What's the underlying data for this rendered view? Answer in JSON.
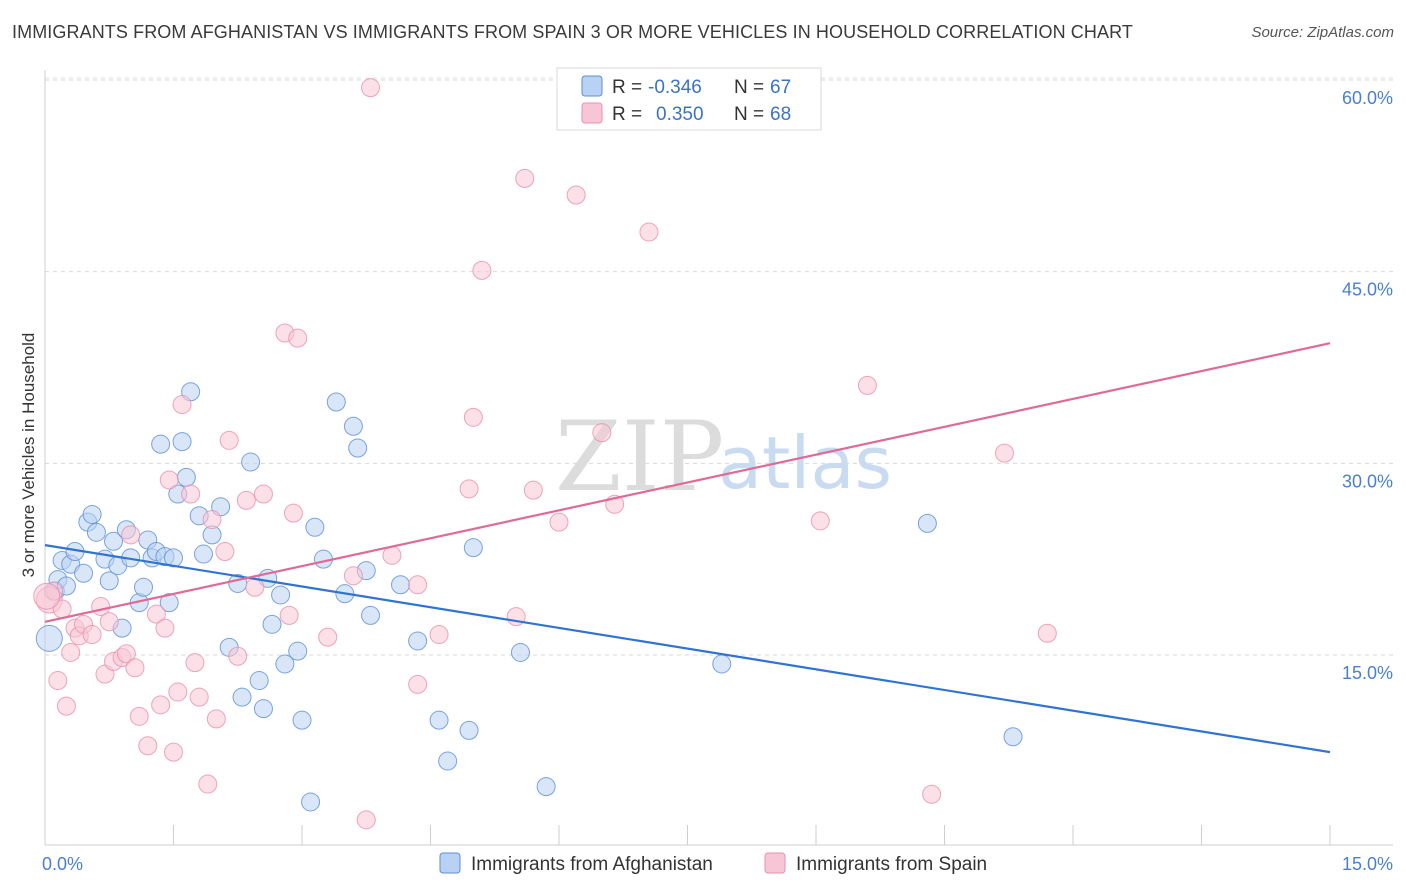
{
  "title": "IMMIGRANTS FROM AFGHANISTAN VS IMMIGRANTS FROM SPAIN 3 OR MORE VEHICLES IN HOUSEHOLD CORRELATION CHART",
  "source": "Source: ZipAtlas.com",
  "watermark": {
    "zip": "ZIP",
    "atlas": "atlas"
  },
  "colors": {
    "blue": "#5b8fd6",
    "blue_fill": "#b9d1f2",
    "blue_line": "#2f74d0",
    "pink": "#e98fae",
    "pink_fill": "#f7c6d6",
    "pink_line": "#e06a95"
  },
  "legend": {
    "rows": [
      {
        "r_label": "R = ",
        "r_value": "-0.346",
        "n_label": "N = ",
        "n_value": "67"
      },
      {
        "r_label": "R = ",
        "r_value": "0.350",
        "n_label": "N = ",
        "n_value": "68"
      }
    ]
  },
  "bottom_legend": [
    "Immigrants from Afghanistan",
    "Immigrants from Spain"
  ],
  "chart_data": {
    "type": "scatter",
    "title": "IMMIGRANTS FROM AFGHANISTAN VS IMMIGRANTS FROM SPAIN 3 OR MORE VEHICLES IN HOUSEHOLD CORRELATION CHART",
    "xlabel": "",
    "ylabel": "3 or more Vehicles in Household",
    "xlim": [
      0,
      15
    ],
    "ylim": [
      0,
      61
    ],
    "x_tick_labels": [
      "0.0%",
      "15.0%"
    ],
    "y_ticks": [
      15,
      30,
      45,
      60
    ],
    "y_tick_labels": [
      "15.0%",
      "30.0%",
      "45.0%",
      "60.0%"
    ],
    "grid": true,
    "series": [
      {
        "name": "Immigrants from Afghanistan",
        "color": "#5b8fd6",
        "trend": {
          "x": [
            0,
            15
          ],
          "y": [
            23.6,
            7.4
          ]
        },
        "points": [
          [
            0.05,
            16.3
          ],
          [
            0.12,
            20.0
          ],
          [
            0.15,
            20.9
          ],
          [
            0.2,
            22.4
          ],
          [
            0.25,
            20.4
          ],
          [
            0.3,
            22.1
          ],
          [
            0.35,
            23.1
          ],
          [
            0.45,
            21.4
          ],
          [
            0.5,
            25.4
          ],
          [
            0.55,
            26.0
          ],
          [
            0.6,
            24.6
          ],
          [
            0.7,
            22.5
          ],
          [
            0.75,
            20.8
          ],
          [
            0.8,
            23.9
          ],
          [
            0.85,
            22.0
          ],
          [
            0.9,
            17.1
          ],
          [
            0.95,
            24.8
          ],
          [
            1.0,
            22.6
          ],
          [
            1.1,
            19.1
          ],
          [
            1.15,
            20.3
          ],
          [
            1.2,
            24.0
          ],
          [
            1.25,
            22.6
          ],
          [
            1.3,
            23.1
          ],
          [
            1.35,
            31.5
          ],
          [
            1.4,
            22.7
          ],
          [
            1.45,
            19.1
          ],
          [
            1.5,
            22.6
          ],
          [
            1.55,
            27.6
          ],
          [
            1.6,
            31.7
          ],
          [
            1.65,
            28.9
          ],
          [
            1.7,
            35.6
          ],
          [
            1.8,
            25.9
          ],
          [
            1.85,
            22.9
          ],
          [
            1.95,
            24.4
          ],
          [
            2.05,
            26.6
          ],
          [
            2.15,
            15.6
          ],
          [
            2.25,
            20.6
          ],
          [
            2.3,
            11.7
          ],
          [
            2.4,
            30.1
          ],
          [
            2.5,
            13.0
          ],
          [
            2.55,
            10.8
          ],
          [
            2.6,
            21.0
          ],
          [
            2.65,
            17.4
          ],
          [
            2.75,
            19.7
          ],
          [
            2.8,
            14.3
          ],
          [
            2.95,
            15.3
          ],
          [
            3.0,
            9.9
          ],
          [
            3.1,
            3.5
          ],
          [
            3.15,
            25.0
          ],
          [
            3.25,
            22.5
          ],
          [
            3.4,
            34.8
          ],
          [
            3.5,
            19.8
          ],
          [
            3.6,
            32.9
          ],
          [
            3.65,
            31.2
          ],
          [
            3.75,
            21.6
          ],
          [
            3.8,
            18.1
          ],
          [
            4.15,
            20.5
          ],
          [
            4.35,
            16.1
          ],
          [
            4.6,
            9.9
          ],
          [
            4.7,
            6.7
          ],
          [
            4.95,
            9.1
          ],
          [
            5.0,
            23.4
          ],
          [
            5.55,
            15.2
          ],
          [
            5.85,
            4.7
          ],
          [
            7.9,
            14.3
          ],
          [
            10.3,
            25.3
          ],
          [
            11.3,
            8.6
          ]
        ]
      },
      {
        "name": "Immigrants from Spain",
        "color": "#e98fae",
        "trend": {
          "x": [
            0,
            15
          ],
          "y": [
            17.6,
            39.4
          ]
        },
        "points": [
          [
            0.05,
            19.3
          ],
          [
            0.1,
            20.0
          ],
          [
            0.15,
            13.0
          ],
          [
            0.2,
            18.6
          ],
          [
            0.25,
            11.0
          ],
          [
            0.3,
            15.2
          ],
          [
            0.35,
            17.1
          ],
          [
            0.4,
            16.5
          ],
          [
            0.45,
            17.4
          ],
          [
            0.55,
            16.6
          ],
          [
            0.65,
            18.8
          ],
          [
            0.7,
            13.5
          ],
          [
            0.75,
            17.6
          ],
          [
            0.8,
            14.5
          ],
          [
            0.9,
            14.8
          ],
          [
            0.95,
            15.1
          ],
          [
            1.0,
            24.4
          ],
          [
            1.05,
            14.0
          ],
          [
            1.1,
            10.2
          ],
          [
            1.2,
            7.9
          ],
          [
            1.3,
            18.2
          ],
          [
            1.35,
            11.1
          ],
          [
            1.4,
            17.1
          ],
          [
            1.45,
            28.7
          ],
          [
            1.5,
            7.4
          ],
          [
            1.55,
            12.1
          ],
          [
            1.6,
            34.6
          ],
          [
            1.7,
            27.6
          ],
          [
            1.75,
            14.4
          ],
          [
            1.8,
            11.7
          ],
          [
            1.9,
            4.9
          ],
          [
            1.95,
            25.6
          ],
          [
            2.0,
            10.0
          ],
          [
            2.1,
            23.1
          ],
          [
            2.15,
            31.8
          ],
          [
            2.25,
            14.9
          ],
          [
            2.35,
            27.1
          ],
          [
            2.45,
            20.3
          ],
          [
            2.55,
            27.6
          ],
          [
            2.8,
            40.2
          ],
          [
            2.85,
            18.1
          ],
          [
            2.9,
            26.1
          ],
          [
            2.95,
            39.8
          ],
          [
            3.3,
            16.4
          ],
          [
            3.6,
            21.2
          ],
          [
            3.75,
            2.1
          ],
          [
            3.8,
            59.4
          ],
          [
            4.05,
            22.8
          ],
          [
            4.35,
            20.5
          ],
          [
            4.35,
            12.7
          ],
          [
            4.6,
            16.6
          ],
          [
            4.95,
            28.0
          ],
          [
            5.0,
            33.6
          ],
          [
            5.1,
            45.1
          ],
          [
            5.5,
            18.0
          ],
          [
            5.6,
            52.3
          ],
          [
            5.7,
            27.9
          ],
          [
            6.0,
            25.4
          ],
          [
            6.2,
            51.0
          ],
          [
            6.5,
            32.4
          ],
          [
            6.65,
            26.8
          ],
          [
            7.05,
            48.1
          ],
          [
            9.05,
            25.5
          ],
          [
            9.6,
            36.1
          ],
          [
            10.35,
            4.1
          ],
          [
            11.2,
            30.8
          ],
          [
            11.7,
            16.7
          ],
          [
            0.02,
            19.6
          ]
        ]
      }
    ]
  }
}
